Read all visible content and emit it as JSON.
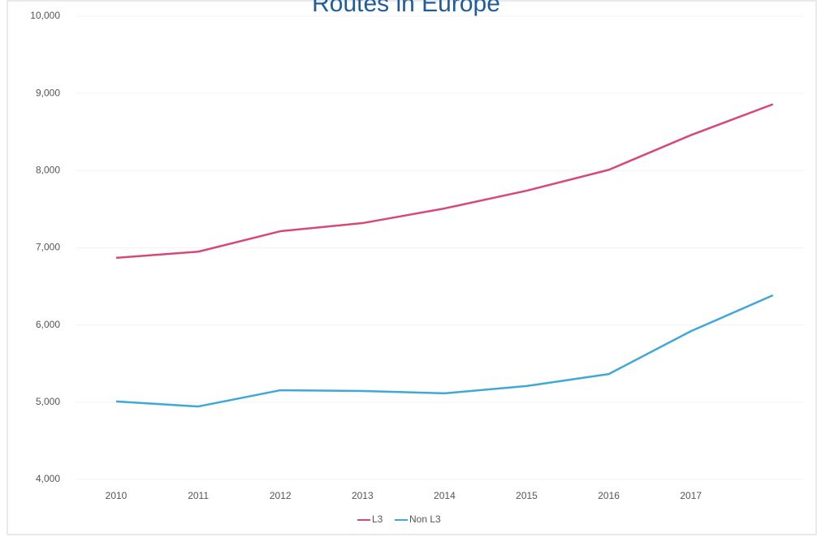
{
  "chart_data": {
    "type": "line",
    "title": "Routes in Europe",
    "categories": [
      "2010",
      "2011",
      "2012",
      "2013",
      "2014",
      "2015",
      "2016",
      "2017",
      null
    ],
    "series": [
      {
        "name": "L3",
        "color": "#d9477a",
        "values": [
          6870,
          6950,
          7215,
          7320,
          7510,
          7740,
          8010,
          8460,
          8860
        ]
      },
      {
        "name": "Non L3",
        "color": "#3fa8d8",
        "values": [
          5010,
          4945,
          5155,
          5145,
          5115,
          5210,
          5365,
          5920,
          6385
        ]
      }
    ],
    "ylim": [
      4000,
      10000
    ],
    "yticks": [
      {
        "value": 4000,
        "label": "4,000"
      },
      {
        "value": 5000,
        "label": "5,000"
      },
      {
        "value": 6000,
        "label": "6,000"
      },
      {
        "value": 7000,
        "label": "7,000"
      },
      {
        "value": 8000,
        "label": "8,000"
      },
      {
        "value": 9000,
        "label": "9,000"
      },
      {
        "value": 10000,
        "label": "10,000"
      }
    ],
    "grid": true,
    "legend": "bottom"
  }
}
